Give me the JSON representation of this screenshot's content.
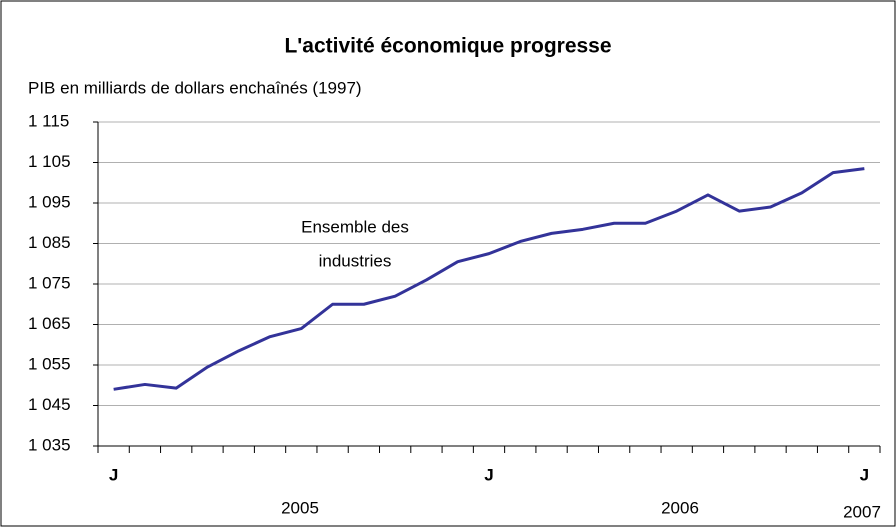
{
  "chart_data": {
    "type": "line",
    "title": "L'activité économique progresse",
    "subtitle": "PIB en milliards de dollars enchaînés (1997)",
    "annotation": [
      "Ensemble des",
      "industries"
    ],
    "years": [
      "2005",
      "2006",
      "2007"
    ],
    "categories": [
      "J",
      null,
      null,
      null,
      null,
      null,
      null,
      null,
      null,
      null,
      null,
      null,
      "J",
      null,
      null,
      null,
      null,
      null,
      null,
      null,
      null,
      null,
      null,
      null,
      "J"
    ],
    "series": [
      {
        "name": "Ensemble des industries",
        "color": "#333399",
        "values": [
          1049,
          1050.2,
          1049.3,
          1054.5,
          1058.5,
          1062,
          1064,
          1070,
          1070,
          1072,
          1076,
          1080.5,
          1082.5,
          1085.5,
          1087.5,
          1088.5,
          1090,
          1090,
          1093,
          1097,
          1093,
          1094,
          1097.5,
          1102.5,
          1103.5
        ]
      }
    ],
    "ylim": [
      1035,
      1115
    ],
    "yticks": [
      {
        "value": 1035,
        "label": "1 035"
      },
      {
        "value": 1045,
        "label": "1 045"
      },
      {
        "value": 1055,
        "label": "1 055"
      },
      {
        "value": 1065,
        "label": "1 065"
      },
      {
        "value": 1075,
        "label": "1 075"
      },
      {
        "value": 1085,
        "label": "1 085"
      },
      {
        "value": 1095,
        "label": "1 095"
      },
      {
        "value": 1105,
        "label": "1 105"
      },
      {
        "value": 1115,
        "label": "1 115"
      }
    ],
    "grid": true
  }
}
